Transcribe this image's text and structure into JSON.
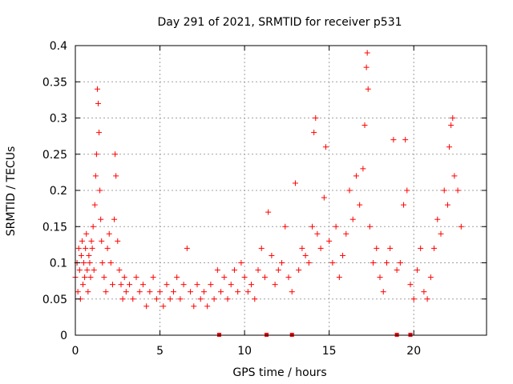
{
  "chart_data": {
    "type": "scatter",
    "title": "Day 291 of 2021, SRMTID for receiver p531",
    "xlabel": "GPS time / hours",
    "ylabel": "SRMTID / TECUs",
    "xlim": [
      0,
      24.3
    ],
    "ylim": [
      0,
      0.4
    ],
    "x_ticks": [
      0,
      5,
      10,
      15,
      20
    ],
    "y_ticks": [
      0,
      0.05,
      0.1,
      0.15,
      0.2,
      0.25,
      0.3,
      0.35,
      0.4
    ],
    "x_tick_labels": [
      "0",
      "5",
      "10",
      "15",
      "20"
    ],
    "y_tick_labels": [
      "0",
      "0.05",
      "0.1",
      "0.15",
      "0.2",
      "0.25",
      "0.3",
      "0.35",
      "0.4"
    ],
    "grid": true,
    "marker": "+",
    "color": "#ff0000",
    "series": [
      {
        "name": "SRMTID",
        "points": [
          [
            0.0,
            0.08
          ],
          [
            0.1,
            0.1
          ],
          [
            0.15,
            0.06
          ],
          [
            0.2,
            0.12
          ],
          [
            0.25,
            0.09
          ],
          [
            0.3,
            0.05
          ],
          [
            0.35,
            0.11
          ],
          [
            0.4,
            0.13
          ],
          [
            0.45,
            0.07
          ],
          [
            0.5,
            0.1
          ],
          [
            0.55,
            0.08
          ],
          [
            0.6,
            0.12
          ],
          [
            0.65,
            0.14
          ],
          [
            0.7,
            0.09
          ],
          [
            0.75,
            0.06
          ],
          [
            0.8,
            0.11
          ],
          [
            0.85,
            0.1
          ],
          [
            0.9,
            0.08
          ],
          [
            0.95,
            0.13
          ],
          [
            1.0,
            0.12
          ],
          [
            1.05,
            0.15
          ],
          [
            1.1,
            0.09
          ],
          [
            1.15,
            0.18
          ],
          [
            1.2,
            0.22
          ],
          [
            1.25,
            0.25
          ],
          [
            1.3,
            0.34
          ],
          [
            1.35,
            0.32
          ],
          [
            1.4,
            0.28
          ],
          [
            1.45,
            0.2
          ],
          [
            1.5,
            0.16
          ],
          [
            1.55,
            0.13
          ],
          [
            1.6,
            0.1
          ],
          [
            1.7,
            0.08
          ],
          [
            1.8,
            0.06
          ],
          [
            1.9,
            0.12
          ],
          [
            2.0,
            0.14
          ],
          [
            2.1,
            0.1
          ],
          [
            2.2,
            0.07
          ],
          [
            2.3,
            0.16
          ],
          [
            2.35,
            0.25
          ],
          [
            2.4,
            0.22
          ],
          [
            2.5,
            0.13
          ],
          [
            2.6,
            0.09
          ],
          [
            2.7,
            0.07
          ],
          [
            2.8,
            0.05
          ],
          [
            2.9,
            0.08
          ],
          [
            3.0,
            0.06
          ],
          [
            3.2,
            0.07
          ],
          [
            3.4,
            0.05
          ],
          [
            3.6,
            0.08
          ],
          [
            3.8,
            0.06
          ],
          [
            4.0,
            0.07
          ],
          [
            4.2,
            0.04
          ],
          [
            4.4,
            0.06
          ],
          [
            4.6,
            0.08
          ],
          [
            4.8,
            0.05
          ],
          [
            5.0,
            0.06
          ],
          [
            5.2,
            0.04
          ],
          [
            5.4,
            0.07
          ],
          [
            5.6,
            0.05
          ],
          [
            5.8,
            0.06
          ],
          [
            6.0,
            0.08
          ],
          [
            6.2,
            0.05
          ],
          [
            6.4,
            0.07
          ],
          [
            6.6,
            0.12
          ],
          [
            6.8,
            0.06
          ],
          [
            7.0,
            0.04
          ],
          [
            7.2,
            0.07
          ],
          [
            7.4,
            0.05
          ],
          [
            7.6,
            0.06
          ],
          [
            7.8,
            0.04
          ],
          [
            8.0,
            0.07
          ],
          [
            8.2,
            0.05
          ],
          [
            8.4,
            0.09
          ],
          [
            8.6,
            0.06
          ],
          [
            8.8,
            0.08
          ],
          [
            9.0,
            0.05
          ],
          [
            9.2,
            0.07
          ],
          [
            9.4,
            0.09
          ],
          [
            9.6,
            0.06
          ],
          [
            9.8,
            0.1
          ],
          [
            10.0,
            0.08
          ],
          [
            10.2,
            0.06
          ],
          [
            10.4,
            0.07
          ],
          [
            10.6,
            0.05
          ],
          [
            10.8,
            0.09
          ],
          [
            11.0,
            0.12
          ],
          [
            11.2,
            0.08
          ],
          [
            11.4,
            0.17
          ],
          [
            11.6,
            0.11
          ],
          [
            11.8,
            0.07
          ],
          [
            12.0,
            0.09
          ],
          [
            12.2,
            0.1
          ],
          [
            12.4,
            0.15
          ],
          [
            12.6,
            0.08
          ],
          [
            12.8,
            0.06
          ],
          [
            13.0,
            0.21
          ],
          [
            13.2,
            0.09
          ],
          [
            13.4,
            0.12
          ],
          [
            13.6,
            0.11
          ],
          [
            13.8,
            0.1
          ],
          [
            14.0,
            0.15
          ],
          [
            14.1,
            0.28
          ],
          [
            14.2,
            0.3
          ],
          [
            14.3,
            0.14
          ],
          [
            14.5,
            0.12
          ],
          [
            14.7,
            0.19
          ],
          [
            14.8,
            0.26
          ],
          [
            15.0,
            0.13
          ],
          [
            15.2,
            0.1
          ],
          [
            15.4,
            0.15
          ],
          [
            15.6,
            0.08
          ],
          [
            15.8,
            0.11
          ],
          [
            16.0,
            0.14
          ],
          [
            16.2,
            0.2
          ],
          [
            16.4,
            0.16
          ],
          [
            16.6,
            0.22
          ],
          [
            16.8,
            0.18
          ],
          [
            17.0,
            0.23
          ],
          [
            17.1,
            0.29
          ],
          [
            17.2,
            0.37
          ],
          [
            17.25,
            0.39
          ],
          [
            17.3,
            0.34
          ],
          [
            17.4,
            0.15
          ],
          [
            17.6,
            0.1
          ],
          [
            17.8,
            0.12
          ],
          [
            18.0,
            0.08
          ],
          [
            18.2,
            0.06
          ],
          [
            18.4,
            0.1
          ],
          [
            18.6,
            0.12
          ],
          [
            18.8,
            0.27
          ],
          [
            19.0,
            0.09
          ],
          [
            19.2,
            0.1
          ],
          [
            19.4,
            0.18
          ],
          [
            19.5,
            0.27
          ],
          [
            19.6,
            0.2
          ],
          [
            19.8,
            0.07
          ],
          [
            20.0,
            0.05
          ],
          [
            20.2,
            0.09
          ],
          [
            20.4,
            0.12
          ],
          [
            20.6,
            0.06
          ],
          [
            20.8,
            0.05
          ],
          [
            21.0,
            0.08
          ],
          [
            21.2,
            0.12
          ],
          [
            21.4,
            0.16
          ],
          [
            21.6,
            0.14
          ],
          [
            21.8,
            0.2
          ],
          [
            22.0,
            0.18
          ],
          [
            22.1,
            0.26
          ],
          [
            22.2,
            0.29
          ],
          [
            22.3,
            0.3
          ],
          [
            22.4,
            0.22
          ],
          [
            22.6,
            0.2
          ],
          [
            22.8,
            0.15
          ]
        ]
      }
    ],
    "zero_points_x": [
      8.5,
      11.3,
      12.8,
      19.0,
      19.8
    ]
  }
}
